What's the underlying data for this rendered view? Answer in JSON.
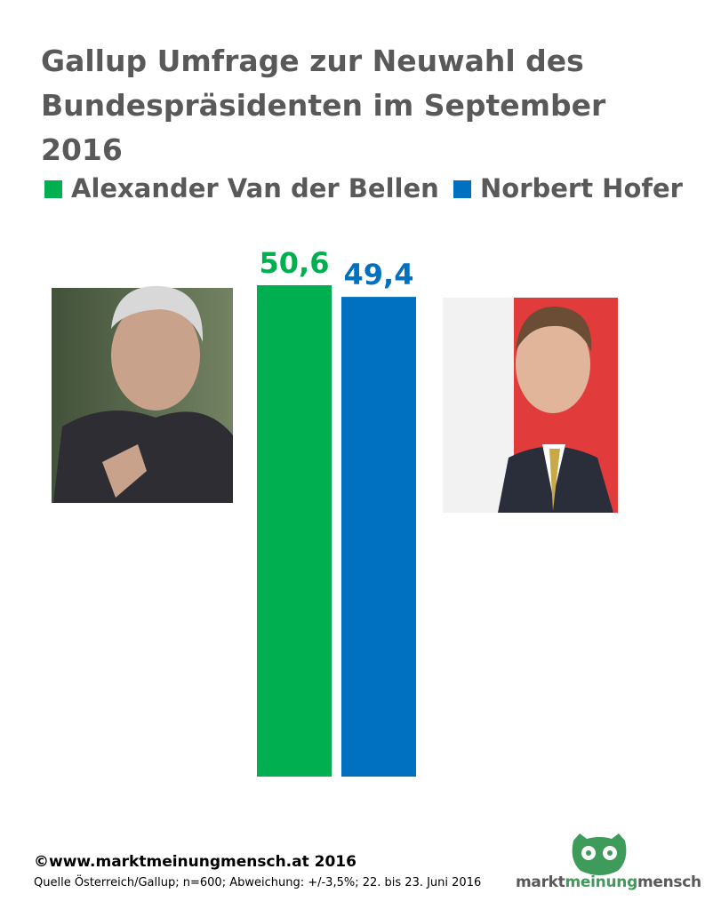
{
  "chart_data": {
    "type": "bar",
    "title": "Gallup Umfrage zur Neuwahl des Bundespräsidenten im September 2016",
    "series": [
      {
        "name": "Alexander Van der Bellen",
        "color": "#00b050",
        "values": [
          50.6
        ],
        "value_labels": [
          "50,6"
        ]
      },
      {
        "name": "Norbert Hofer",
        "color": "#0070c0",
        "values": [
          49.4
        ],
        "value_labels": [
          "49,4"
        ]
      }
    ],
    "copyright": "©www.marktmeinungmensch.at 2016",
    "source": "Quelle Österreich/Gallup; n=600; Abweichung: +/-3,5%;  22. bis 23. Juni 2016",
    "logo": [
      "markt",
      "meinung",
      "mensch"
    ]
  }
}
